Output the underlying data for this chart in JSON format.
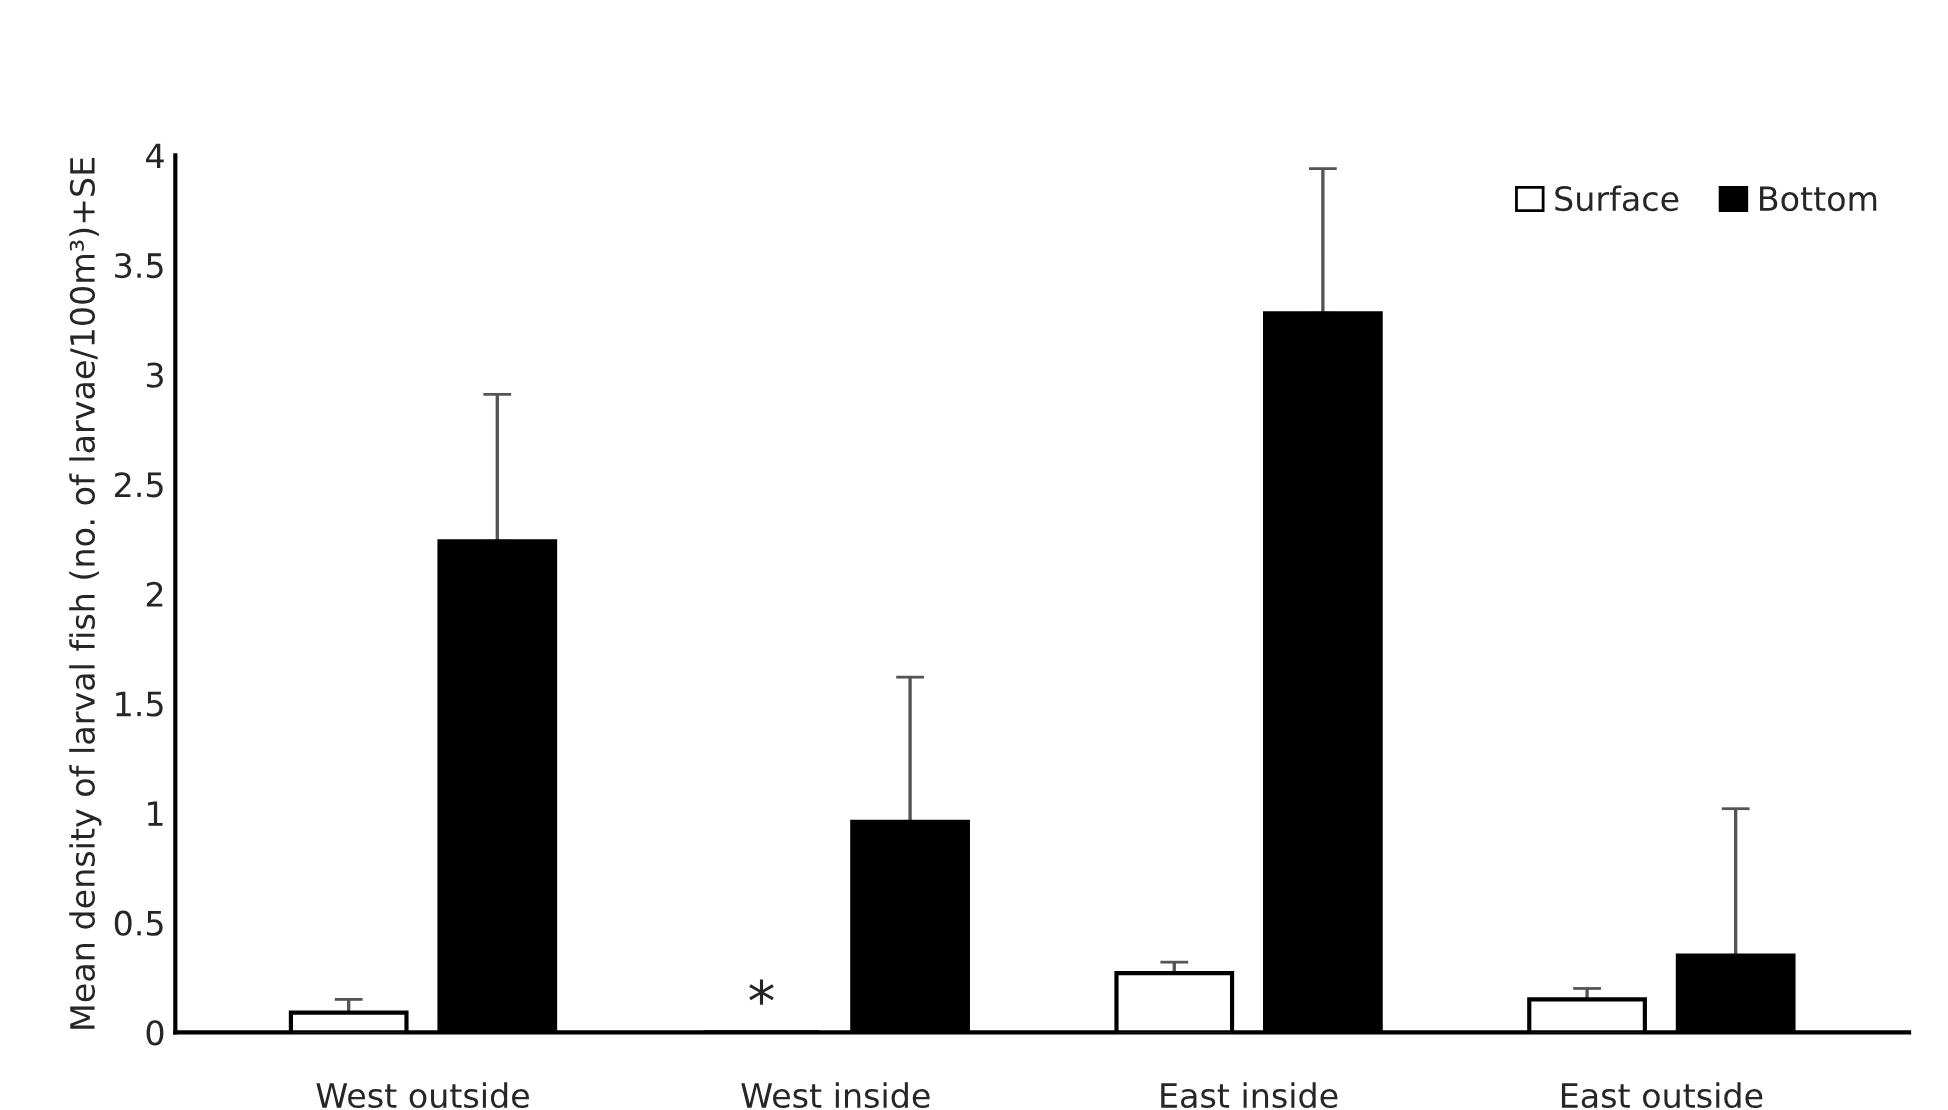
{
  "chart_data": {
    "type": "bar",
    "ylabel": "Mean density of larval fish (no. of larvae/100m³)+SE",
    "categories": [
      "West outside",
      "West inside",
      "East inside",
      "East outside"
    ],
    "series": [
      {
        "name": "Surface",
        "color": "#ffffff",
        "values": [
          0.09,
          0,
          0.27,
          0.15
        ],
        "errors": [
          [
            0.09,
            0.15
          ],
          null,
          [
            0.27,
            0.32
          ],
          [
            0.15,
            0.2
          ]
        ]
      },
      {
        "name": "Bottom",
        "color": "#000000",
        "values": [
          2.24,
          0.96,
          3.28,
          0.35
        ],
        "errors": [
          [
            2.24,
            2.91
          ],
          [
            0.96,
            1.62
          ],
          [
            3.28,
            3.94
          ],
          [
            0.35,
            1.02
          ]
        ]
      }
    ],
    "annotations": [
      {
        "text": "*",
        "x": "West inside",
        "y": 0
      }
    ],
    "ylim": [
      0,
      4
    ],
    "yticks": [
      0,
      0.5,
      1,
      1.5,
      2,
      2.5,
      3,
      3.5,
      4
    ],
    "grid": false,
    "legend": "top right"
  }
}
